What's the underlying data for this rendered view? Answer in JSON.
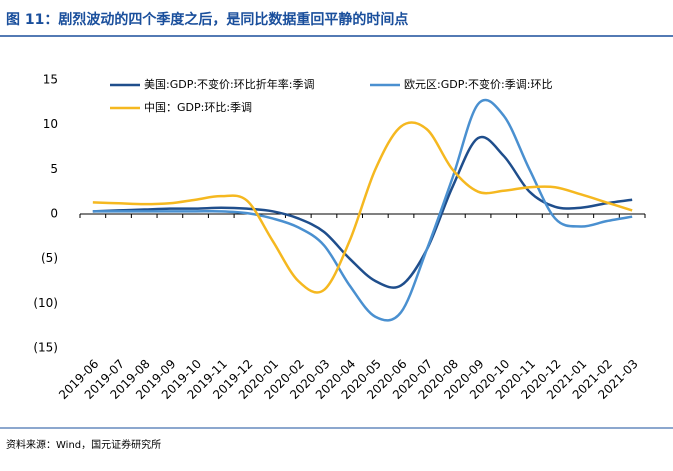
{
  "title": "图 11：剧烈波动的四个季度之后，是同比数据重回平静的时间点",
  "source": "资料来源：Wind，国元证券研究所",
  "chart_data": {
    "type": "line",
    "categories": [
      "2019-06",
      "2019-07",
      "2019-08",
      "2019-09",
      "2019-10",
      "2019-11",
      "2019-12",
      "2020-01",
      "2020-02",
      "2020-03",
      "2020-04",
      "2020-05",
      "2020-06",
      "2020-07",
      "2020-08",
      "2020-09",
      "2020-10",
      "2020-11",
      "2020-12",
      "2021-01",
      "2021-02",
      "2021-03"
    ],
    "series": [
      {
        "name": "美国:GDP:不变价:环比折年率:季调",
        "color": "#1f4e8c",
        "values": [
          0.3,
          0.4,
          0.5,
          0.6,
          0.6,
          0.7,
          0.6,
          0.3,
          -0.5,
          -2,
          -5,
          -7.5,
          -8,
          -4,
          3,
          8.5,
          6.5,
          2.5,
          0.8,
          0.7,
          1.2,
          1.6
        ]
      },
      {
        "name": "欧元区:GDP:不变价:季调:环比",
        "color": "#4a90d0",
        "values": [
          0.3,
          0.3,
          0.3,
          0.3,
          0.3,
          0.3,
          0.1,
          -0.5,
          -1.5,
          -3.5,
          -8,
          -11.5,
          -11,
          -4,
          4,
          12.3,
          11,
          5,
          -0.5,
          -1.4,
          -0.8,
          -0.3
        ]
      },
      {
        "name": "中国：GDP:环比:季调",
        "color": "#f5b820",
        "values": [
          1.3,
          1.2,
          1.1,
          1.2,
          1.6,
          2.0,
          1.5,
          -3,
          -7.5,
          -8.5,
          -3,
          5,
          9.8,
          9.5,
          5,
          2.5,
          2.6,
          3,
          3,
          2.2,
          1.3,
          0.4
        ]
      }
    ],
    "ylim": [
      -15,
      15
    ],
    "yticks": [
      {
        "value": -15,
        "label": "(15)"
      },
      {
        "value": -10,
        "label": "(10)"
      },
      {
        "value": -5,
        "label": "(5)"
      },
      0,
      5,
      10,
      15
    ]
  }
}
